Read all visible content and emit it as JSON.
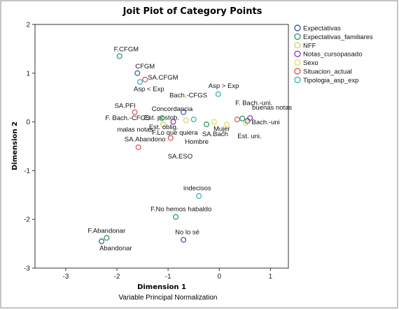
{
  "chart_data": {
    "type": "scatter",
    "title": "Joit Piot of Category Points",
    "xlabel": "Dimension 1",
    "ylabel": "Dimension 2",
    "footer": "Variable Principal Normalization",
    "xlim": [
      -3.6,
      1.35
    ],
    "ylim": [
      -3,
      2
    ],
    "xticks": [
      -3,
      -2,
      -1,
      0,
      1
    ],
    "yticks": [
      -3,
      -2,
      -1,
      0,
      1,
      2
    ],
    "grid": false,
    "legend_position": "right",
    "series": [
      {
        "name": "Expectativas",
        "color": "#3f5ea8"
      },
      {
        "name": "Expectativas_familiares",
        "color": "#2e9e5e"
      },
      {
        "name": "NFF",
        "color": "#d8d07a"
      },
      {
        "name": "Notas_cursopasado",
        "color": "#8e44ad"
      },
      {
        "name": "Sexo",
        "color": "#e8e060"
      },
      {
        "name": "Situacion_actual",
        "color": "#e05a5a"
      },
      {
        "name": "Tipologia_asp_exp",
        "color": "#35b8b3"
      }
    ],
    "points": [
      {
        "label": "F.CFGM",
        "x": -1.95,
        "y": 1.35,
        "series": 1
      },
      {
        "label": "CFGM",
        "x": -1.6,
        "y": 1.0,
        "series": 0
      },
      {
        "label": "SA.CFGM",
        "x": -1.45,
        "y": 0.87,
        "series": 5
      },
      {
        "label": "Asp < Exp",
        "x": -1.55,
        "y": 0.82,
        "series": 6
      },
      {
        "label": "Asp > Exp",
        "x": -0.02,
        "y": 0.57,
        "series": 6
      },
      {
        "label": "Bach.-CFGS",
        "x": -0.7,
        "y": 0.2,
        "series": 0
      },
      {
        "label": "Concordancia",
        "x": -0.5,
        "y": 0.05,
        "series": 6
      },
      {
        "label": "Est. postob.",
        "x": -0.65,
        "y": 0.03,
        "series": 2
      },
      {
        "label": "SA.PFI",
        "x": -1.65,
        "y": 0.2,
        "series": 5
      },
      {
        "label": "F. Bach.-CFGS",
        "x": -1.12,
        "y": 0.08,
        "series": 1
      },
      {
        "label": "malas notas",
        "x": -0.9,
        "y": 0.0,
        "series": 3
      },
      {
        "label": "Est. oblig.",
        "x": -1.1,
        "y": -0.05,
        "series": 2
      },
      {
        "label": "F.Lo que quiera",
        "x": -0.25,
        "y": -0.05,
        "series": 1
      },
      {
        "label": "Mujer",
        "x": -0.1,
        "y": 0.0,
        "series": 4
      },
      {
        "label": "Hombre",
        "x": 0.15,
        "y": -0.05,
        "series": 4
      },
      {
        "label": "F. Bach.-uni.",
        "x": 0.45,
        "y": 0.07,
        "series": 1
      },
      {
        "label": "buenas notas",
        "x": 0.6,
        "y": 0.08,
        "series": 3
      },
      {
        "label": "Bach.-uni",
        "x": 0.55,
        "y": 0.02,
        "series": 0
      },
      {
        "label": "Est. uni.",
        "x": 0.52,
        "y": -0.02,
        "series": 2
      },
      {
        "label": "SA.Bach",
        "x": 0.35,
        "y": 0.05,
        "series": 5
      },
      {
        "label": "SA.Abandono",
        "x": -0.95,
        "y": -0.33,
        "series": 5
      },
      {
        "label": "SA.ESO",
        "x": -1.58,
        "y": -0.52,
        "series": 5
      },
      {
        "label": "indecisos",
        "x": -0.4,
        "y": -1.52,
        "series": 6
      },
      {
        "label": "F.No hemos habaldo",
        "x": -0.85,
        "y": -1.95,
        "series": 1
      },
      {
        "label": "F.Abandonar",
        "x": -2.2,
        "y": -2.38,
        "series": 1
      },
      {
        "label": "Abandonar",
        "x": -2.3,
        "y": -2.45,
        "series": 0
      },
      {
        "label": "No lo sé",
        "x": -0.7,
        "y": -2.42,
        "series": 0
      }
    ]
  }
}
